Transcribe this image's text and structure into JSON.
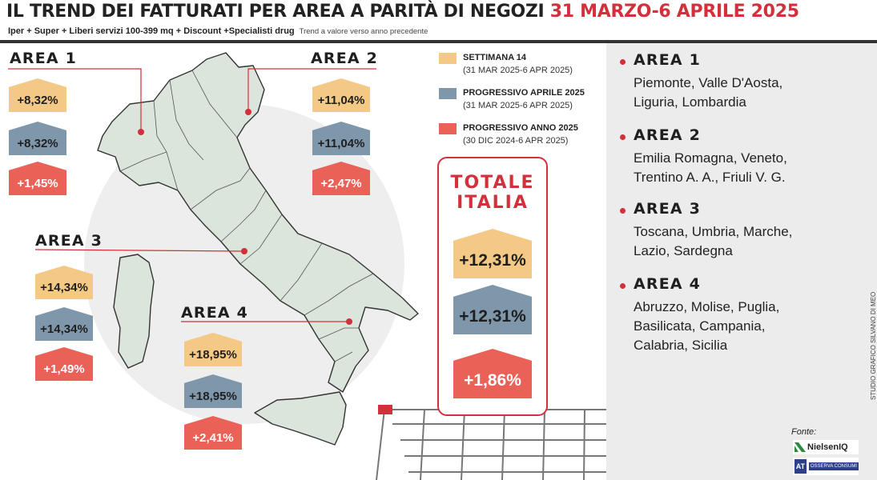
{
  "header": {
    "title_main": "IL TREND DEI FATTURATI PER AREA A PARITÀ DI NEGOZI",
    "title_date": "31 MARZO-6 APRILE 2025",
    "subtitle": "Iper + Super + Liberi servizi 100-399 mq + Discount +Specialisti drug",
    "subtitle_note": "Trend a valore verso anno precedente"
  },
  "legend": [
    {
      "title": "SETTIMANA 14",
      "period": "(31 MAR 2025-6 APR 2025)",
      "color": "#f3c985"
    },
    {
      "title": "PROGRESSIVO APRILE 2025",
      "period": "(31 MAR 2025-6 APR 2025)",
      "color": "#7f97ab"
    },
    {
      "title": "PROGRESSIVO ANNO 2025",
      "period": "(30 DIC 2024-6 APR 2025)",
      "color": "#ea6257"
    }
  ],
  "areas": [
    {
      "name": "AREA 1",
      "settimana": "+8,32%",
      "aprile": "+8,32%",
      "anno": "+1,45%"
    },
    {
      "name": "AREA 2",
      "settimana": "+11,04%",
      "aprile": "+11,04%",
      "anno": "+2,47%"
    },
    {
      "name": "AREA 3",
      "settimana": "+14,34%",
      "aprile": "+14,34%",
      "anno": "+1,49%"
    },
    {
      "name": "AREA 4",
      "settimana": "+18,95%",
      "aprile": "+18,95%",
      "anno": "+2,41%"
    }
  ],
  "totale": {
    "title": "TOTALE\nITALIA",
    "settimana": "+12,31%",
    "aprile": "+12,31%",
    "anno": "+1,86%"
  },
  "side_list": [
    {
      "area": "AREA 1",
      "lines": [
        "Piemonte, Valle D'Aosta,",
        "Liguria, Lombardia"
      ]
    },
    {
      "area": "AREA 2",
      "lines": [
        "Emilia Romagna, Veneto,",
        "Trentino A. A., Friuli V. G."
      ]
    },
    {
      "area": "AREA 3",
      "lines": [
        "Toscana, Umbria, Marche,",
        "Lazio, Sardegna"
      ]
    },
    {
      "area": "AREA 4",
      "lines": [
        "Abruzzo, Molise, Puglia,",
        "Basilicata, Campania,",
        "Calabria, Sicilia"
      ]
    }
  ],
  "footer": {
    "credit": "STUDIO GRAFICO SILVANO DI MEO",
    "fonte": "Fonte:",
    "source1": "NielsenIQ",
    "source2_icon": "AT",
    "source2": "OSSERVA CONSUMI"
  },
  "colors": {
    "settimana": "#f3c985",
    "aprile": "#7f97ab",
    "anno": "#ea6257",
    "accent": "#d2303a",
    "map_fill": "#dbe5dc",
    "map_bg": "#eeeeee"
  }
}
